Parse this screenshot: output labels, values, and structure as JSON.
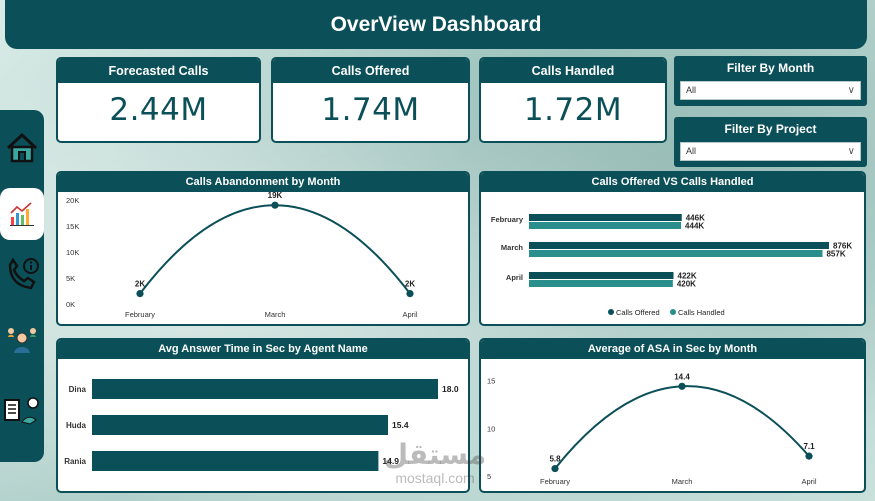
{
  "header": {
    "title": "OverView Dashboard"
  },
  "kpis": [
    {
      "label": "Forecasted Calls",
      "value": "2.44M"
    },
    {
      "label": "Calls Offered",
      "value": "1.74M"
    },
    {
      "label": "Calls Handled",
      "value": "1.72M"
    }
  ],
  "filters": {
    "month": {
      "label": "Filter By Month",
      "selected": "All"
    },
    "project": {
      "label": "Filter By Project",
      "selected": "All"
    }
  },
  "sidebar": {
    "items": [
      {
        "name": "home-icon"
      },
      {
        "name": "chart-icon"
      },
      {
        "name": "phone-info-icon"
      },
      {
        "name": "agents-icon"
      },
      {
        "name": "report-icon"
      }
    ]
  },
  "watermark": {
    "text_ar": "مستقل",
    "text_en": "mostaql.com"
  },
  "colors": {
    "primary": "#0b4f58",
    "secondary": "#2a8f8c"
  },
  "chart_data": [
    {
      "id": "abandon",
      "type": "line",
      "title": "Calls Abandonment by Month",
      "categories": [
        "February",
        "March",
        "April"
      ],
      "values": [
        2000,
        19000,
        2000
      ],
      "labels": [
        "2K",
        "19K",
        "2K"
      ],
      "ylim": [
        0,
        20000
      ],
      "yticks": [
        0,
        5000,
        10000,
        15000,
        20000
      ],
      "ytick_labels": [
        "0K",
        "5K",
        "10K",
        "15K",
        "20K"
      ]
    },
    {
      "id": "offered_handled",
      "type": "bar",
      "orientation": "horizontal",
      "title": "Calls Offered VS Calls Handled",
      "categories": [
        "February",
        "March",
        "April"
      ],
      "series": [
        {
          "name": "Calls Offered",
          "values": [
            446000,
            876000,
            422000
          ],
          "labels": [
            "446K",
            "876K",
            "422K"
          ],
          "color": "#0b4f58"
        },
        {
          "name": "Calls Handled",
          "values": [
            444000,
            857000,
            420000
          ],
          "labels": [
            "444K",
            "857K",
            "420K"
          ],
          "color": "#2a8f8c"
        }
      ],
      "xlim": [
        0,
        876000
      ],
      "legend": "bottom"
    },
    {
      "id": "agent_asa",
      "type": "bar",
      "orientation": "horizontal",
      "title": "Avg Answer Time in Sec by Agent Name",
      "categories": [
        "Dina",
        "Huda",
        "Rania"
      ],
      "values": [
        18.0,
        15.4,
        14.9
      ],
      "labels": [
        "18.0",
        "15.4",
        "14.9"
      ],
      "xlim": [
        0,
        18.0
      ]
    },
    {
      "id": "asa_month",
      "type": "line",
      "title": "Average of ASA in Sec by Month",
      "categories": [
        "February",
        "March",
        "April"
      ],
      "values": [
        5.8,
        14.4,
        7.1
      ],
      "labels": [
        "5.8",
        "14.4",
        "7.1"
      ],
      "ylim": [
        4.5,
        16
      ],
      "yticks": [
        5,
        10,
        15
      ],
      "ytick_labels": [
        "5",
        "10",
        "15"
      ]
    }
  ]
}
